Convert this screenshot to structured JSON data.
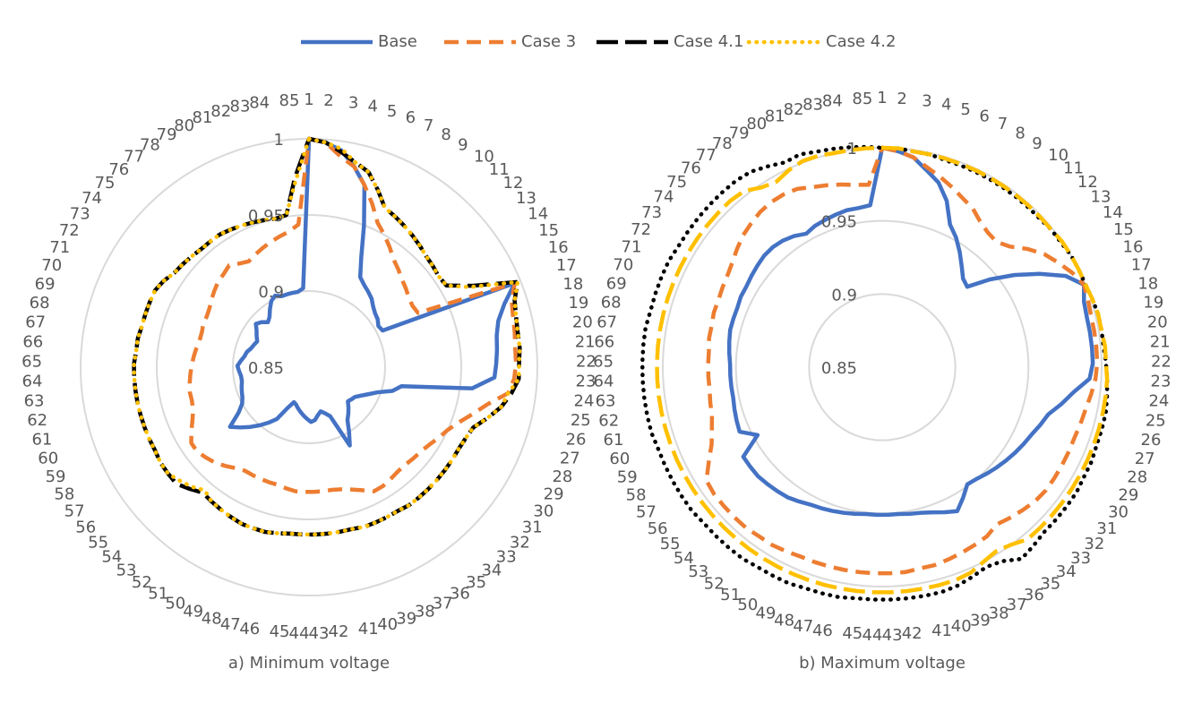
{
  "legend_source": 0,
  "chart_data": [
    {
      "type": "radar",
      "title": "a) Minimum voltage",
      "categories": [
        "1",
        "2",
        "3",
        "4",
        "5",
        "6",
        "7",
        "8",
        "9",
        "10",
        "11",
        "12",
        "13",
        "14",
        "15",
        "16",
        "17",
        "18",
        "19",
        "20",
        "21",
        "22",
        "23",
        "24",
        "25",
        "26",
        "27",
        "28",
        "29",
        "30",
        "31",
        "32",
        "33",
        "34",
        "35",
        "36",
        "37",
        "38",
        "39",
        "40",
        "41",
        "42",
        "43",
        "44",
        "45",
        "46",
        "47",
        "48",
        "49",
        "50",
        "51",
        "52",
        "53",
        "54",
        "55",
        "56",
        "57",
        "58",
        "59",
        "60",
        "61",
        "62",
        "63",
        "64",
        "65",
        "66",
        "67",
        "68",
        "69",
        "70",
        "71",
        "72",
        "73",
        "74",
        "75",
        "76",
        "77",
        "78",
        "79",
        "80",
        "81",
        "82",
        "83",
        "84",
        "85"
      ],
      "ylim": [
        0.85,
        1
      ],
      "yticks": [
        1,
        0.95,
        0.9,
        0.85
      ],
      "grid": true,
      "series": [
        {
          "name": "Base",
          "color": "#4472c4",
          "dash": "solid",
          "values": [
            1.0,
            0.998,
            0.994,
            0.985,
            0.975,
            0.95,
            0.93,
            0.918,
            0.915,
            0.913,
            0.911,
            0.908,
            0.906,
            0.905,
            0.903,
            0.904,
            0.996,
            0.985,
            0.978,
            0.975,
            0.974,
            0.973,
            0.972,
            0.958,
            0.912,
            0.907,
            0.898,
            0.893,
            0.889,
            0.886,
            0.885,
            0.884,
            0.887,
            0.89,
            0.893,
            0.9,
            0.908,
            0.885,
            0.882,
            0.88,
            0.882,
            0.885,
            0.886,
            0.884,
            0.882,
            0.88,
            0.878,
            0.876,
            0.875,
            0.88,
            0.89,
            0.895,
            0.9,
            0.905,
            0.91,
            0.915,
            0.905,
            0.9,
            0.898,
            0.897,
            0.896,
            0.895,
            0.895,
            0.896,
            0.897,
            0.895,
            0.893,
            0.892,
            0.89,
            0.889,
            0.888,
            0.89,
            0.892,
            0.895,
            0.893,
            0.89,
            0.892,
            0.896,
            0.9,
            0.902,
            0.9,
            0.9,
            0.9,
            0.9,
            0.902
          ]
        },
        {
          "name": "Case 3",
          "color": "#ed7d31",
          "dash": "dash",
          "values": [
            1.0,
            0.998,
            0.99,
            0.985,
            0.975,
            0.965,
            0.955,
            0.95,
            0.945,
            0.94,
            0.937,
            0.934,
            0.932,
            0.93,
            0.929,
            0.93,
            0.996,
            0.99,
            0.988,
            0.987,
            0.986,
            0.986,
            0.985,
            0.982,
            0.97,
            0.962,
            0.955,
            0.95,
            0.947,
            0.944,
            0.942,
            0.941,
            0.94,
            0.94,
            0.941,
            0.942,
            0.942,
            0.938,
            0.935,
            0.933,
            0.932,
            0.932,
            0.932,
            0.932,
            0.932,
            0.931,
            0.93,
            0.93,
            0.93,
            0.93,
            0.93,
            0.932,
            0.935,
            0.938,
            0.94,
            0.942,
            0.942,
            0.938,
            0.934,
            0.931,
            0.93,
            0.93,
            0.929,
            0.928,
            0.927,
            0.926,
            0.925,
            0.924,
            0.924,
            0.925,
            0.925,
            0.926,
            0.928,
            0.93,
            0.932,
            0.933,
            0.935,
            0.932,
            0.93,
            0.932,
            0.934,
            0.936,
            0.938,
            0.94,
            0.944
          ]
        },
        {
          "name": "Case 4.1",
          "color": "#000000",
          "dash": "longdash",
          "values": [
            1.0,
            0.998,
            0.993,
            0.988,
            0.984,
            0.975,
            0.966,
            0.964,
            0.962,
            0.96,
            0.958,
            0.956,
            0.955,
            0.954,
            0.955,
            0.97,
            0.998,
            0.992,
            0.99,
            0.989,
            0.989,
            0.988,
            0.988,
            0.984,
            0.979,
            0.972,
            0.965,
            0.963,
            0.962,
            0.962,
            0.962,
            0.962,
            0.962,
            0.962,
            0.962,
            0.961,
            0.961,
            0.961,
            0.961,
            0.96,
            0.96,
            0.96,
            0.96,
            0.96,
            0.96,
            0.961,
            0.962,
            0.962,
            0.962,
            0.961,
            0.96,
            0.959,
            0.958,
            0.962,
            0.966,
            0.966,
            0.966,
            0.965,
            0.965,
            0.965,
            0.965,
            0.965,
            0.965,
            0.965,
            0.965,
            0.964,
            0.964,
            0.963,
            0.963,
            0.963,
            0.963,
            0.961,
            0.958,
            0.957,
            0.956,
            0.955,
            0.955,
            0.955,
            0.954,
            0.953,
            0.952,
            0.951,
            0.95,
            0.951,
            0.975
          ]
        },
        {
          "name": "Case 4.2",
          "color": "#ffc000",
          "dash": "dot",
          "values": [
            1.0,
            0.998,
            0.995,
            0.988,
            0.984,
            0.975,
            0.966,
            0.964,
            0.962,
            0.96,
            0.958,
            0.956,
            0.955,
            0.954,
            0.955,
            0.968,
            0.998,
            0.992,
            0.99,
            0.989,
            0.989,
            0.988,
            0.988,
            0.982,
            0.979,
            0.972,
            0.965,
            0.963,
            0.962,
            0.962,
            0.962,
            0.962,
            0.962,
            0.962,
            0.962,
            0.961,
            0.961,
            0.961,
            0.961,
            0.96,
            0.96,
            0.96,
            0.96,
            0.96,
            0.96,
            0.961,
            0.962,
            0.962,
            0.962,
            0.961,
            0.96,
            0.959,
            0.956,
            0.96,
            0.963,
            0.966,
            0.966,
            0.965,
            0.965,
            0.965,
            0.965,
            0.965,
            0.965,
            0.965,
            0.965,
            0.964,
            0.964,
            0.963,
            0.963,
            0.963,
            0.963,
            0.961,
            0.958,
            0.957,
            0.956,
            0.955,
            0.955,
            0.955,
            0.954,
            0.953,
            0.952,
            0.951,
            0.95,
            0.951,
            0.972
          ]
        }
      ]
    },
    {
      "type": "radar",
      "title": "b) Maximum voltage",
      "categories": [
        "1",
        "2",
        "3",
        "4",
        "5",
        "6",
        "7",
        "8",
        "9",
        "10",
        "11",
        "12",
        "13",
        "14",
        "15",
        "16",
        "17",
        "18",
        "19",
        "20",
        "21",
        "22",
        "23",
        "24",
        "25",
        "26",
        "27",
        "28",
        "29",
        "30",
        "31",
        "32",
        "33",
        "34",
        "35",
        "36",
        "37",
        "38",
        "39",
        "40",
        "41",
        "42",
        "43",
        "44",
        "45",
        "46",
        "47",
        "48",
        "49",
        "50",
        "51",
        "52",
        "53",
        "54",
        "55",
        "56",
        "57",
        "58",
        "59",
        "60",
        "61",
        "62",
        "63",
        "64",
        "65",
        "66",
        "67",
        "68",
        "69",
        "70",
        "71",
        "72",
        "73",
        "74",
        "75",
        "76",
        "77",
        "78",
        "79",
        "80",
        "81",
        "82",
        "83",
        "84",
        "85"
      ],
      "ylim": [
        0.85,
        1
      ],
      "yticks": [
        1,
        0.95,
        0.9,
        0.85
      ],
      "grid": true,
      "series": [
        {
          "color": "#4472c4",
          "dash": "solid",
          "values": [
            1.0,
            0.998,
            0.995,
            0.988,
            0.982,
            0.972,
            0.958,
            0.952,
            0.945,
            0.938,
            0.932,
            0.93,
            0.945,
            0.96,
            0.975,
            0.99,
            0.999,
            0.995,
            0.994,
            0.994,
            0.994,
            0.994,
            0.992,
            0.982,
            0.975,
            0.968,
            0.965,
            0.962,
            0.96,
            0.958,
            0.956,
            0.954,
            0.952,
            0.95,
            0.949,
            0.955,
            0.961,
            0.958,
            0.955,
            0.953,
            0.952,
            0.951,
            0.951,
            0.951,
            0.951,
            0.952,
            0.953,
            0.954,
            0.955,
            0.956,
            0.958,
            0.96,
            0.961,
            0.962,
            0.963,
            0.963,
            0.963,
            0.947,
            0.957,
            0.956,
            0.955,
            0.954,
            0.954,
            0.954,
            0.954,
            0.955,
            0.956,
            0.957,
            0.957,
            0.957,
            0.958,
            0.958,
            0.959,
            0.96,
            0.961,
            0.961,
            0.96,
            0.958,
            0.955,
            0.957,
            0.958,
            0.959,
            0.96,
            0.96,
            0.961
          ]
        },
        {
          "color": "#ed7d31",
          "dash": "dash",
          "values": [
            1.0,
            0.998,
            0.995,
            0.99,
            0.986,
            0.982,
            0.978,
            0.975,
            0.97,
            0.967,
            0.966,
            0.97,
            0.978,
            0.985,
            0.99,
            0.995,
            0.999,
            0.998,
            0.997,
            0.997,
            0.997,
            0.997,
            0.996,
            0.994,
            0.992,
            0.991,
            0.99,
            0.99,
            0.99,
            0.99,
            0.99,
            0.989,
            0.987,
            0.985,
            0.983,
            0.986,
            0.987,
            0.988,
            0.989,
            0.99,
            0.99,
            0.991,
            0.991,
            0.991,
            0.991,
            0.991,
            0.991,
            0.991,
            0.991,
            0.992,
            0.993,
            0.993,
            0.994,
            0.994,
            0.994,
            0.994,
            0.993,
            0.985,
            0.978,
            0.974,
            0.971,
            0.97,
            0.969,
            0.969,
            0.969,
            0.969,
            0.97,
            0.97,
            0.971,
            0.971,
            0.972,
            0.973,
            0.975,
            0.978,
            0.981,
            0.983,
            0.985,
            0.986,
            0.986,
            0.985,
            0.982,
            0.98,
            0.978,
            0.976,
            0.975
          ]
        },
        {
          "color": "#000000",
          "dash": "dot",
          "values": [
            1.0,
            1.0,
            0.999,
            0.999,
            0.998,
            0.998,
            0.998,
            0.998,
            0.998,
            0.998,
            0.998,
            0.998,
            0.999,
            0.999,
            1.0,
            1.0,
            1.0,
            1.001,
            1.002,
            1.002,
            1.002,
            1.003,
            1.004,
            1.005,
            1.006,
            1.006,
            1.006,
            1.007,
            1.007,
            1.008,
            1.008,
            1.008,
            1.008,
            1.01,
            1.012,
            1.006,
            1.004,
            1.006,
            1.008,
            1.009,
            1.009,
            1.009,
            1.009,
            1.009,
            1.009,
            1.01,
            1.01,
            1.01,
            1.011,
            1.011,
            1.011,
            1.012,
            1.012,
            1.012,
            1.012,
            1.013,
            1.013,
            1.013,
            1.013,
            1.013,
            1.014,
            1.014,
            1.014,
            1.014,
            1.014,
            1.014,
            1.014,
            1.013,
            1.013,
            1.013,
            1.013,
            1.012,
            1.012,
            1.012,
            1.012,
            1.012,
            1.012,
            1.011,
            1.008,
            1.005,
            1.006,
            1.004,
            1.003,
            1.002,
            1.001
          ]
        },
        {
          "color": "#ffc000",
          "dash": "longdash",
          "values": [
            1.0,
            1.0,
            0.999,
            0.999,
            0.999,
            0.999,
            0.999,
            0.999,
            0.999,
            0.999,
            0.999,
            0.999,
            0.999,
            1.0,
            1.0,
            1.0,
            1.0,
            1.001,
            1.002,
            1.002,
            1.003,
            1.003,
            1.004,
            1.004,
            1.004,
            1.004,
            1.004,
            1.004,
            1.004,
            1.004,
            1.004,
            1.004,
            1.004,
            1.004,
            1.0,
            0.998,
            1.0,
            1.003,
            1.004,
            1.004,
            1.004,
            1.004,
            1.004,
            1.004,
            1.004,
            1.004,
            1.004,
            1.004,
            1.004,
            1.004,
            1.004,
            1.004,
            1.004,
            1.004,
            1.004,
            1.004,
            1.004,
            1.004,
            1.004,
            1.004,
            1.004,
            1.004,
            1.004,
            1.004,
            1.004,
            1.004,
            1.004,
            1.004,
            1.004,
            1.004,
            1.004,
            1.004,
            1.004,
            1.004,
            1.004,
            1.004,
            1.003,
            0.998,
            0.996,
            0.999,
            1.001,
            1.001,
            1.0,
            1.0,
            1.0
          ]
        }
      ]
    }
  ]
}
